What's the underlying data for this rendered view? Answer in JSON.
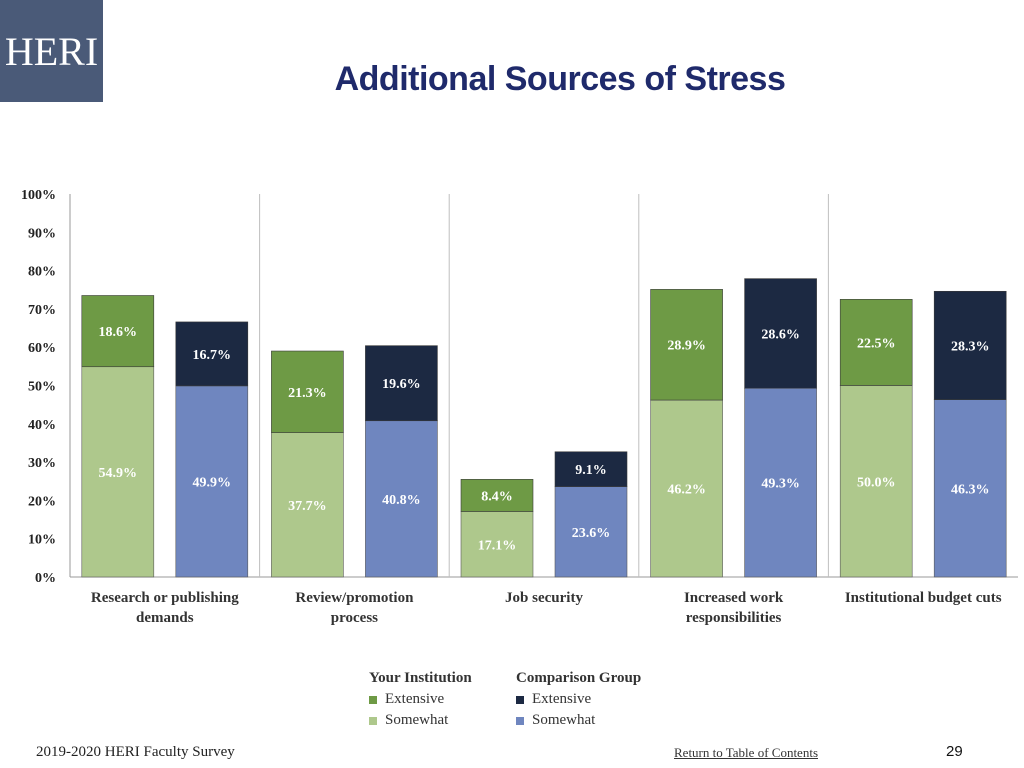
{
  "logo": {
    "text": "HERI"
  },
  "title": "Additional Sources of Stress",
  "colors": {
    "inst_extensive": "#6e9a45",
    "inst_somewhat": "#aec88c",
    "comp_extensive": "#1c2942",
    "comp_somewhat": "#6f86bf",
    "divider": "#bfbfbf",
    "axis": "#999999"
  },
  "chart_data": {
    "type": "bar",
    "stacked": true,
    "ylim": [
      0,
      100
    ],
    "yticks": [
      "0%",
      "10%",
      "20%",
      "30%",
      "40%",
      "50%",
      "60%",
      "70%",
      "80%",
      "90%",
      "100%"
    ],
    "categories": [
      [
        "Research or publishing",
        "demands"
      ],
      [
        "Review/promotion",
        "process"
      ],
      [
        "Job security"
      ],
      [
        "Increased work",
        "responsibilities"
      ],
      [
        "Institutional budget cuts"
      ]
    ],
    "groups": [
      "Your Institution",
      "Comparison Group"
    ],
    "series": [
      {
        "group": "Your Institution",
        "level": "Somewhat",
        "values": [
          54.9,
          37.7,
          17.1,
          46.2,
          50.0
        ],
        "labels": [
          "54.9%",
          "37.7%",
          "17.1%",
          "46.2%",
          "50.0%"
        ]
      },
      {
        "group": "Your Institution",
        "level": "Extensive",
        "values": [
          18.6,
          21.3,
          8.4,
          28.9,
          22.5
        ],
        "labels": [
          "18.6%",
          "21.3%",
          "8.4%",
          "28.9%",
          "22.5%"
        ]
      },
      {
        "group": "Comparison Group",
        "level": "Somewhat",
        "values": [
          49.9,
          40.8,
          23.6,
          49.3,
          46.3
        ],
        "labels": [
          "49.9%",
          "40.8%",
          "23.6%",
          "49.3%",
          "46.3%"
        ]
      },
      {
        "group": "Comparison Group",
        "level": "Extensive",
        "values": [
          16.7,
          19.6,
          9.1,
          28.6,
          28.3
        ],
        "labels": [
          "16.7%",
          "19.6%",
          "9.1%",
          "28.6%",
          "28.3%"
        ]
      }
    ],
    "legend": {
      "your_institution": {
        "title": "Your Institution",
        "items": [
          "Extensive",
          "Somewhat"
        ]
      },
      "comparison_group": {
        "title": "Comparison Group",
        "items": [
          "Extensive",
          "Somewhat"
        ]
      }
    }
  },
  "footer": {
    "survey": "2019-2020 HERI Faculty Survey",
    "link": "Return to Table of Contents",
    "page": "29"
  }
}
